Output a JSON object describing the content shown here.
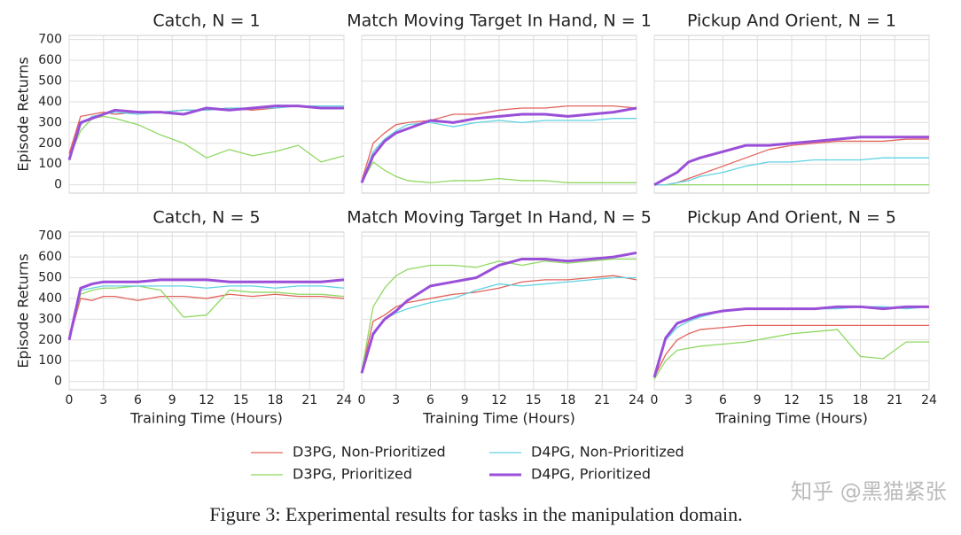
{
  "chart_data": [
    {
      "type": "line",
      "title": "Catch, N = 1",
      "ylabel": "Episode Returns",
      "x": [
        0,
        1,
        2,
        3,
        4,
        6,
        8,
        10,
        12,
        14,
        16,
        18,
        20,
        22,
        24
      ],
      "xlim": [
        0,
        24
      ],
      "ylim": [
        -40,
        720
      ],
      "xticks": [
        0,
        3,
        6,
        9,
        12,
        15,
        18,
        21,
        24
      ],
      "yticks": [
        0,
        100,
        200,
        300,
        400,
        500,
        600,
        700
      ],
      "grid": true,
      "series": [
        {
          "name": "D3PG, Non-Prioritized",
          "color": "#e2635c",
          "values": [
            150,
            330,
            340,
            350,
            340,
            350,
            350,
            360,
            360,
            370,
            360,
            370,
            380,
            370,
            370
          ]
        },
        {
          "name": "D3PG, Prioritized",
          "color": "#8fd862",
          "values": [
            130,
            260,
            320,
            330,
            320,
            290,
            240,
            200,
            130,
            170,
            140,
            160,
            190,
            110,
            140
          ]
        },
        {
          "name": "D4PG, Non-Prioritized",
          "color": "#5fd2e2",
          "values": [
            130,
            290,
            330,
            340,
            350,
            340,
            350,
            360,
            360,
            370,
            370,
            370,
            380,
            380,
            380
          ]
        },
        {
          "name": "D4PG, Prioritized",
          "color": "#9a4fd8",
          "values": [
            120,
            300,
            320,
            340,
            360,
            350,
            350,
            340,
            370,
            360,
            370,
            380,
            380,
            370,
            370
          ]
        }
      ]
    },
    {
      "type": "line",
      "title": "Match Moving Target In Hand, N = 1",
      "x": [
        0,
        1,
        2,
        3,
        4,
        6,
        8,
        10,
        12,
        14,
        16,
        18,
        20,
        22,
        24
      ],
      "xlim": [
        0,
        24
      ],
      "ylim": [
        -40,
        720
      ],
      "xticks": [
        0,
        3,
        6,
        9,
        12,
        15,
        18,
        21,
        24
      ],
      "yticks": [
        0,
        100,
        200,
        300,
        400,
        500,
        600,
        700
      ],
      "grid": true,
      "series": [
        {
          "name": "D3PG, Non-Prioritized",
          "color": "#e2635c",
          "values": [
            20,
            200,
            250,
            290,
            300,
            310,
            340,
            340,
            360,
            370,
            370,
            380,
            380,
            380,
            370
          ]
        },
        {
          "name": "D3PG, Prioritized",
          "color": "#8fd862",
          "values": [
            10,
            110,
            70,
            40,
            20,
            10,
            20,
            20,
            30,
            20,
            20,
            10,
            10,
            10,
            10
          ]
        },
        {
          "name": "D4PG, Non-Prioritized",
          "color": "#5fd2e2",
          "values": [
            10,
            160,
            220,
            260,
            290,
            300,
            280,
            300,
            310,
            300,
            310,
            310,
            310,
            320,
            320
          ]
        },
        {
          "name": "D4PG, Prioritized",
          "color": "#9a4fd8",
          "values": [
            10,
            140,
            210,
            250,
            270,
            310,
            300,
            320,
            330,
            340,
            340,
            330,
            340,
            350,
            370
          ]
        }
      ]
    },
    {
      "type": "line",
      "title": "Pickup And Orient, N = 1",
      "x": [
        0,
        1,
        2,
        3,
        4,
        6,
        8,
        10,
        12,
        14,
        16,
        18,
        20,
        22,
        24
      ],
      "xlim": [
        0,
        24
      ],
      "ylim": [
        -40,
        720
      ],
      "xticks": [
        0,
        3,
        6,
        9,
        12,
        15,
        18,
        21,
        24
      ],
      "yticks": [
        0,
        100,
        200,
        300,
        400,
        500,
        600,
        700
      ],
      "grid": true,
      "series": [
        {
          "name": "D3PG, Non-Prioritized",
          "color": "#e2635c",
          "values": [
            0,
            0,
            10,
            30,
            50,
            90,
            130,
            170,
            190,
            200,
            210,
            210,
            210,
            220,
            220
          ]
        },
        {
          "name": "D3PG, Prioritized",
          "color": "#8fd862",
          "values": [
            0,
            0,
            0,
            0,
            0,
            0,
            0,
            0,
            0,
            0,
            0,
            0,
            0,
            0,
            0
          ]
        },
        {
          "name": "D4PG, Non-Prioritized",
          "color": "#5fd2e2",
          "values": [
            0,
            0,
            10,
            20,
            40,
            60,
            90,
            110,
            110,
            120,
            120,
            120,
            130,
            130,
            130
          ]
        },
        {
          "name": "D4PG, Prioritized",
          "color": "#9a4fd8",
          "values": [
            0,
            30,
            60,
            110,
            130,
            160,
            190,
            190,
            200,
            210,
            220,
            230,
            230,
            230,
            230
          ]
        }
      ]
    },
    {
      "type": "line",
      "title": "Catch, N = 5",
      "ylabel": "Episode Returns",
      "xlabel": "Training Time (Hours)",
      "x": [
        0,
        1,
        2,
        3,
        4,
        6,
        8,
        10,
        12,
        14,
        16,
        18,
        20,
        22,
        24
      ],
      "xlim": [
        0,
        24
      ],
      "ylim": [
        -40,
        720
      ],
      "xticks": [
        0,
        3,
        6,
        9,
        12,
        15,
        18,
        21,
        24
      ],
      "yticks": [
        0,
        100,
        200,
        300,
        400,
        500,
        600,
        700
      ],
      "grid": true,
      "series": [
        {
          "name": "D3PG, Non-Prioritized",
          "color": "#e2635c",
          "values": [
            200,
            400,
            390,
            410,
            410,
            390,
            410,
            410,
            400,
            420,
            410,
            420,
            410,
            410,
            400
          ]
        },
        {
          "name": "D3PG, Prioritized",
          "color": "#8fd862",
          "values": [
            200,
            420,
            440,
            450,
            450,
            460,
            440,
            310,
            320,
            440,
            430,
            430,
            420,
            420,
            410
          ]
        },
        {
          "name": "D4PG, Non-Prioritized",
          "color": "#5fd2e2",
          "values": [
            200,
            440,
            450,
            460,
            460,
            460,
            460,
            460,
            450,
            460,
            460,
            450,
            460,
            460,
            450
          ]
        },
        {
          "name": "D4PG, Prioritized",
          "color": "#9a4fd8",
          "values": [
            200,
            450,
            470,
            480,
            480,
            480,
            490,
            490,
            490,
            480,
            480,
            480,
            480,
            480,
            490
          ]
        }
      ]
    },
    {
      "type": "line",
      "title": "Match Moving Target In Hand, N = 5",
      "xlabel": "Training Time (Hours)",
      "x": [
        0,
        1,
        2,
        3,
        4,
        6,
        8,
        10,
        12,
        14,
        16,
        18,
        20,
        22,
        24
      ],
      "xlim": [
        0,
        24
      ],
      "ylim": [
        -40,
        720
      ],
      "xticks": [
        0,
        3,
        6,
        9,
        12,
        15,
        18,
        21,
        24
      ],
      "yticks": [
        0,
        100,
        200,
        300,
        400,
        500,
        600,
        700
      ],
      "grid": true,
      "series": [
        {
          "name": "D3PG, Non-Prioritized",
          "color": "#e2635c",
          "values": [
            50,
            290,
            320,
            360,
            380,
            400,
            420,
            430,
            450,
            480,
            490,
            490,
            500,
            510,
            490
          ]
        },
        {
          "name": "D3PG, Prioritized",
          "color": "#8fd862",
          "values": [
            50,
            360,
            450,
            510,
            540,
            560,
            560,
            550,
            580,
            560,
            580,
            570,
            580,
            590,
            590
          ]
        },
        {
          "name": "D4PG, Non-Prioritized",
          "color": "#5fd2e2",
          "values": [
            40,
            220,
            300,
            330,
            350,
            380,
            400,
            440,
            470,
            460,
            470,
            480,
            490,
            500,
            500
          ]
        },
        {
          "name": "D4PG, Prioritized",
          "color": "#9a4fd8",
          "values": [
            40,
            230,
            300,
            340,
            390,
            460,
            480,
            500,
            560,
            590,
            590,
            580,
            590,
            600,
            620
          ]
        }
      ]
    },
    {
      "type": "line",
      "title": "Pickup And Orient, N = 5",
      "xlabel": "Training Time (Hours)",
      "x": [
        0,
        1,
        2,
        3,
        4,
        6,
        8,
        10,
        12,
        14,
        16,
        18,
        20,
        22,
        24
      ],
      "xlim": [
        0,
        24
      ],
      "ylim": [
        -40,
        720
      ],
      "xticks": [
        0,
        3,
        6,
        9,
        12,
        15,
        18,
        21,
        24
      ],
      "yticks": [
        0,
        100,
        200,
        300,
        400,
        500,
        600,
        700
      ],
      "grid": true,
      "series": [
        {
          "name": "D3PG, Non-Prioritized",
          "color": "#e2635c",
          "values": [
            20,
            130,
            200,
            230,
            250,
            260,
            270,
            270,
            270,
            270,
            270,
            270,
            270,
            270,
            270
          ]
        },
        {
          "name": "D3PG, Prioritized",
          "color": "#8fd862",
          "values": [
            10,
            100,
            150,
            160,
            170,
            180,
            190,
            210,
            230,
            240,
            250,
            120,
            110,
            190,
            190
          ]
        },
        {
          "name": "D4PG, Non-Prioritized",
          "color": "#5fd2e2",
          "values": [
            20,
            200,
            260,
            290,
            310,
            340,
            350,
            350,
            350,
            350,
            350,
            360,
            360,
            350,
            360
          ]
        },
        {
          "name": "D4PG, Prioritized",
          "color": "#9a4fd8",
          "values": [
            20,
            210,
            280,
            300,
            320,
            340,
            350,
            350,
            350,
            350,
            360,
            360,
            350,
            360,
            360
          ]
        }
      ]
    }
  ],
  "caption": "Figure 3: Experimental results for tasks in the manipulation domain.",
  "watermark": "知乎 @黑猫紧张"
}
